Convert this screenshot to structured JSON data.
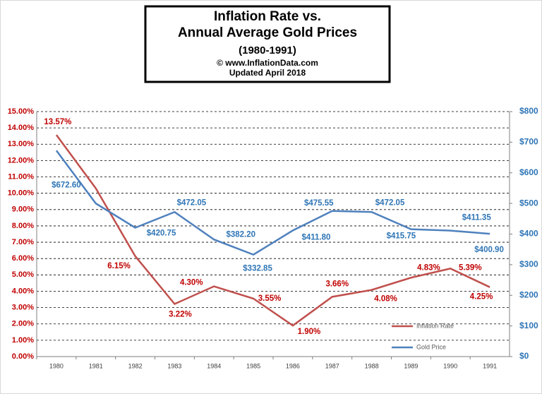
{
  "chart_data": {
    "type": "line",
    "title": [
      "Inflation Rate vs.",
      "Annual Average Gold Prices"
    ],
    "subtitle": [
      "(1980-1991)",
      "© www.InflationData.com",
      "Updated April 2018"
    ],
    "categories": [
      "1980",
      "1981",
      "1982",
      "1983",
      "1984",
      "1985",
      "1986",
      "1987",
      "1988",
      "1989",
      "1990",
      "1991"
    ],
    "series": [
      {
        "name": "Inflation Rate",
        "color": "#c0504d",
        "axis": "y",
        "values": [
          13.57,
          10.3,
          6.15,
          3.22,
          4.3,
          3.55,
          1.9,
          3.66,
          4.08,
          4.83,
          5.39,
          4.25
        ],
        "value_labels": [
          "13.57%",
          null,
          "6.15%",
          "3.22%",
          "4.30%",
          "3.55%",
          "1.90%",
          "3.66%",
          "4.08%",
          "4.83%",
          "5.39%",
          "4.25%"
        ]
      },
      {
        "name": "Gold Price",
        "color": "#4f81bd",
        "axis": "y2",
        "values": [
          672.6,
          500,
          420.75,
          472.05,
          382.2,
          332.85,
          411.8,
          475.55,
          472.05,
          415.75,
          411.35,
          400.9
        ],
        "value_labels": [
          "$672.60",
          null,
          "$420.75",
          "$472.05",
          "$382.20",
          "$332.85",
          "$411.80",
          "$475.55",
          "$472.05",
          "$415.75",
          "$411.35",
          "$400.90"
        ]
      }
    ],
    "ylim": [
      0,
      15
    ],
    "yticks": [
      {
        "value": 0,
        "label": "0.00%"
      },
      {
        "value": 1,
        "label": "1.00%"
      },
      {
        "value": 2,
        "label": "2.00%"
      },
      {
        "value": 3,
        "label": "3.00%"
      },
      {
        "value": 4,
        "label": "4.00%"
      },
      {
        "value": 5,
        "label": "5.00%"
      },
      {
        "value": 6,
        "label": "6.00%"
      },
      {
        "value": 7,
        "label": "7.00%"
      },
      {
        "value": 8,
        "label": "8.00%"
      },
      {
        "value": 9,
        "label": "9.00%"
      },
      {
        "value": 10,
        "label": "10.00%"
      },
      {
        "value": 11,
        "label": "11.00%"
      },
      {
        "value": 12,
        "label": "12.00%"
      },
      {
        "value": 13,
        "label": "13.00%"
      },
      {
        "value": 14,
        "label": "14.00%"
      },
      {
        "value": 15,
        "label": "15.00%"
      }
    ],
    "y2lim": [
      0,
      800
    ],
    "y2ticks": [
      {
        "value": 0,
        "label": "$0"
      },
      {
        "value": 100,
        "label": "$100"
      },
      {
        "value": 200,
        "label": "$200"
      },
      {
        "value": 300,
        "label": "$300"
      },
      {
        "value": 400,
        "label": "$400"
      },
      {
        "value": 500,
        "label": "$500"
      },
      {
        "value": 600,
        "label": "$600"
      },
      {
        "value": 700,
        "label": "$700"
      },
      {
        "value": 800,
        "label": "$800"
      }
    ],
    "grid": true,
    "legend": "lower right"
  }
}
